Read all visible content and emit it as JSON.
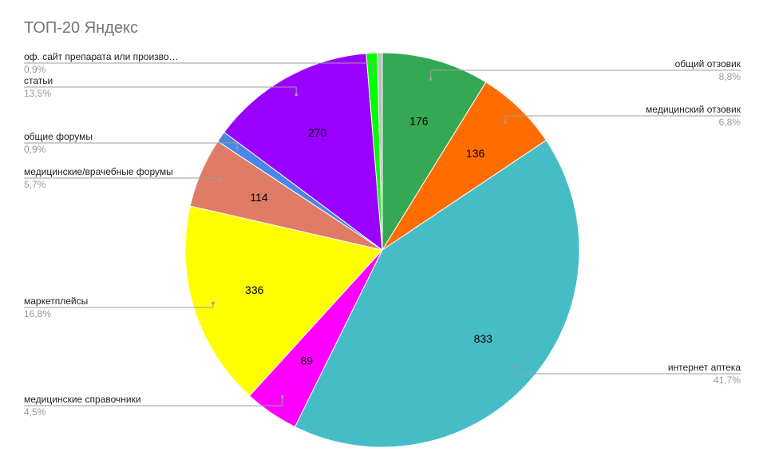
{
  "chart_data": {
    "type": "pie",
    "title": "ТОП-20 Яндекс",
    "colors": {
      "green": "#34a853",
      "orange": "#ff6d00",
      "teal": "#46bdc6",
      "magenta": "#ff00ff",
      "yellow": "#ffff00",
      "salmon": "#e07b65",
      "blue": "#4a86e8",
      "purple": "#9900ff",
      "lime": "#00ff00",
      "gray": "#bdbdbd"
    },
    "slices": [
      {
        "label": "общий отзовик",
        "value": 176,
        "percent": "8,8%",
        "value_label": "176",
        "color": "#34a853",
        "legend_side": "right"
      },
      {
        "label": "медицинский отзовик",
        "value": 136,
        "percent": "6,8%",
        "value_label": "136",
        "color": "#ff6d00",
        "legend_side": "right"
      },
      {
        "label": "интернет аптека",
        "value": 833,
        "percent": "41,7%",
        "value_label": "833",
        "color": "#46bdc6",
        "legend_side": "right"
      },
      {
        "label": "медицинские справочники",
        "value": 89,
        "percent": "4,5%",
        "value_label": "89",
        "color": "#ff00ff",
        "legend_side": "left"
      },
      {
        "label": "маркетплейсы",
        "value": 336,
        "percent": "16,8%",
        "value_label": "336",
        "color": "#ffff00",
        "legend_side": "left"
      },
      {
        "label": "медицинские/врачебные форумы",
        "value": 114,
        "percent": "5,7%",
        "value_label": "114",
        "color": "#e07b65",
        "legend_side": "left"
      },
      {
        "label": "общие форумы",
        "value": 18,
        "percent": "0,9%",
        "value_label": "",
        "color": "#4a86e8",
        "legend_side": "left"
      },
      {
        "label": "статьи",
        "value": 270,
        "percent": "13,5%",
        "value_label": "270",
        "color": "#9900ff",
        "legend_side": "left"
      },
      {
        "label": "оф. сайт препарата или произво…",
        "value": 18,
        "percent": "0,9%",
        "value_label": "",
        "color": "#00ff00",
        "legend_side": "left"
      },
      {
        "label": "",
        "value": 8,
        "percent": "",
        "value_label": "",
        "color": "#bdbdbd",
        "legend_side": "none"
      }
    ]
  }
}
